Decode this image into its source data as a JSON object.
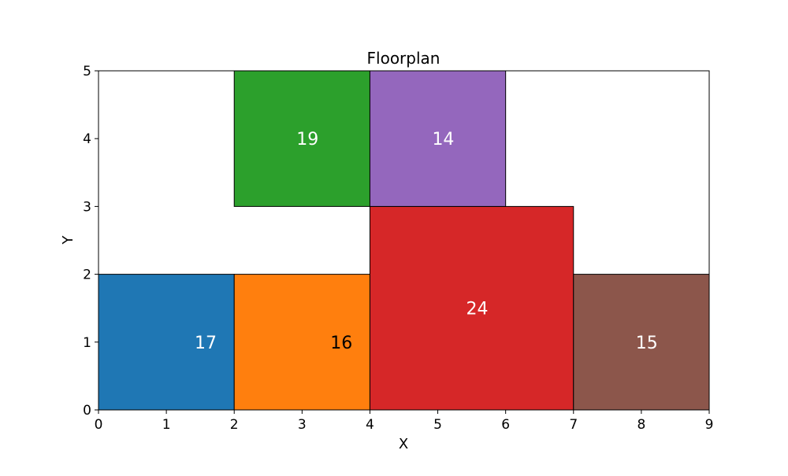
{
  "chart_data": {
    "type": "floorplan",
    "title": "Floorplan",
    "xlabel": "X",
    "ylabel": "Y",
    "xlim": [
      0,
      9
    ],
    "ylim": [
      0,
      5
    ],
    "xticks": [
      "0",
      "1",
      "2",
      "3",
      "4",
      "5",
      "6",
      "7",
      "8",
      "9"
    ],
    "yticks": [
      "0",
      "1",
      "2",
      "3",
      "4",
      "5"
    ],
    "grid": false,
    "rooms": [
      {
        "label": "17",
        "x": 0,
        "y": 0,
        "width": 2,
        "height": 2,
        "label_x": 1.58,
        "label_y": 1.0,
        "color": "#1f77b4",
        "text_color": "#ffffff"
      },
      {
        "label": "16",
        "x": 2,
        "y": 0,
        "width": 2,
        "height": 2,
        "label_x": 3.58,
        "label_y": 1.0,
        "color": "#ff7f0e",
        "text_color": "#000000"
      },
      {
        "label": "24",
        "x": 4,
        "y": 0,
        "width": 3,
        "height": 3,
        "label_x": 5.58,
        "label_y": 1.5,
        "color": "#d62728",
        "text_color": "#ffffff"
      },
      {
        "label": "15",
        "x": 7,
        "y": 0,
        "width": 2,
        "height": 2,
        "label_x": 8.08,
        "label_y": 1.0,
        "color": "#8c564b",
        "text_color": "#ffffff"
      },
      {
        "label": "19",
        "x": 2,
        "y": 3,
        "width": 2,
        "height": 2,
        "label_x": 3.08,
        "label_y": 4.0,
        "color": "#2ca02c",
        "text_color": "#ffffff"
      },
      {
        "label": "14",
        "x": 4,
        "y": 3,
        "width": 2,
        "height": 2,
        "label_x": 5.08,
        "label_y": 4.0,
        "color": "#9467bd",
        "text_color": "#ffffff"
      }
    ]
  }
}
